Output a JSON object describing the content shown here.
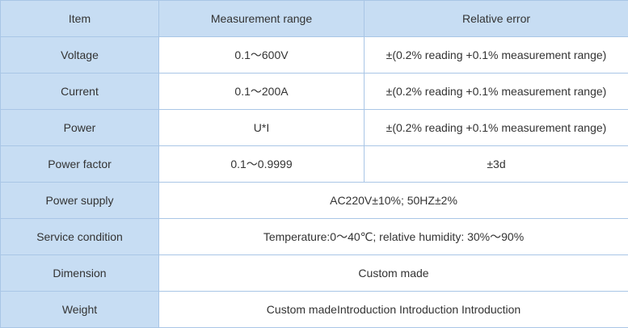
{
  "table": {
    "header": [
      "Item",
      "Measurement range",
      "Relative error"
    ],
    "rows": [
      [
        "Voltage",
        "0.1～600V",
        "±(0.2% reading +0.1% measurement range)"
      ],
      [
        "Current",
        "0.1～200A",
        "±(0.2% reading +0.1% measurement range)"
      ],
      [
        "Power",
        "U*I",
        "±(0.2% reading +0.1% measurement range)"
      ],
      [
        "Power factor",
        "0.1～0.9999",
        "±3d"
      ],
      [
        "Power supply",
        "AC220V±10%; 50HZ±2%"
      ],
      [
        "Service condition",
        "Temperature:0～40℃; relative humidity: 30%～90%"
      ],
      [
        "Dimension",
        "Custom made"
      ],
      [
        "Weight",
        "Custom madeIntroduction Introduction Introduction"
      ]
    ]
  }
}
